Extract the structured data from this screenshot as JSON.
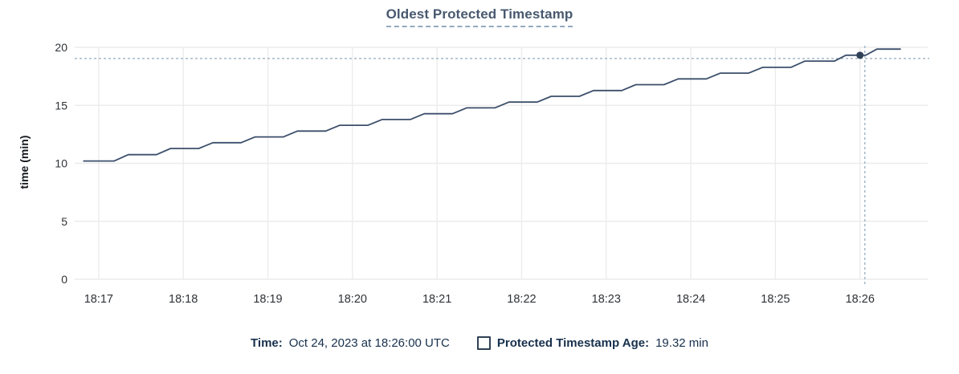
{
  "header": {
    "title": "Oldest Protected Timestamp"
  },
  "chart_data": {
    "type": "line",
    "title": "Oldest Protected Timestamp",
    "xlabel": "",
    "ylabel": "time (min)",
    "x_domain": [
      "18:16:43",
      "18:26:48"
    ],
    "ylim": [
      0,
      20
    ],
    "x_ticks": [
      "18:17",
      "18:18",
      "18:19",
      "18:20",
      "18:21",
      "18:22",
      "18:23",
      "18:24",
      "18:25",
      "18:26"
    ],
    "y_ticks": [
      0,
      5,
      10,
      15,
      20
    ],
    "grid": true,
    "legend_position": "bottom",
    "series": [
      {
        "name": "Protected Timestamp Age",
        "unit": "min",
        "points": [
          [
            "18:16:49",
            10.2
          ],
          [
            "18:17:11",
            10.2
          ],
          [
            "18:17:21",
            10.75
          ],
          [
            "18:17:41",
            10.75
          ],
          [
            "18:17:51",
            11.28
          ],
          [
            "18:18:11",
            11.28
          ],
          [
            "18:18:21",
            11.78
          ],
          [
            "18:18:41",
            11.78
          ],
          [
            "18:18:51",
            12.28
          ],
          [
            "18:19:11",
            12.28
          ],
          [
            "18:19:21",
            12.78
          ],
          [
            "18:19:41",
            12.78
          ],
          [
            "18:19:51",
            13.28
          ],
          [
            "18:20:11",
            13.28
          ],
          [
            "18:20:21",
            13.78
          ],
          [
            "18:20:41",
            13.78
          ],
          [
            "18:20:51",
            14.28
          ],
          [
            "18:21:11",
            14.28
          ],
          [
            "18:21:21",
            14.78
          ],
          [
            "18:21:41",
            14.78
          ],
          [
            "18:21:51",
            15.28
          ],
          [
            "18:22:11",
            15.28
          ],
          [
            "18:22:21",
            15.78
          ],
          [
            "18:22:41",
            15.78
          ],
          [
            "18:22:51",
            16.28
          ],
          [
            "18:23:11",
            16.28
          ],
          [
            "18:23:21",
            16.78
          ],
          [
            "18:23:41",
            16.78
          ],
          [
            "18:23:51",
            17.28
          ],
          [
            "18:24:11",
            17.28
          ],
          [
            "18:24:21",
            17.78
          ],
          [
            "18:24:41",
            17.78
          ],
          [
            "18:24:51",
            18.28
          ],
          [
            "18:25:11",
            18.28
          ],
          [
            "18:25:21",
            18.82
          ],
          [
            "18:25:42",
            18.82
          ],
          [
            "18:25:50",
            19.32
          ],
          [
            "18:26:04",
            19.32
          ],
          [
            "18:26:12",
            19.85
          ],
          [
            "18:26:29",
            19.85
          ]
        ]
      }
    ],
    "marker": {
      "time": "18:26:00",
      "value": 19.32
    }
  },
  "footer_legend": {
    "time_label": "Time:",
    "time_value": "Oct 24, 2023 at 18:26:00 UTC",
    "series_label": "Protected Timestamp Age:",
    "series_value": "19.32 min"
  },
  "colors": {
    "background": "#ffffff",
    "line": "#3c4f6b",
    "marker_dot": "#2e4157",
    "crosshair": "#a3b9c8",
    "grid": "#ececec",
    "title": "#48596f",
    "title_underline": "#93a9bd",
    "tick_label": "#2f3237",
    "axis_label": "#15181d",
    "legend_text": "#17304d"
  }
}
